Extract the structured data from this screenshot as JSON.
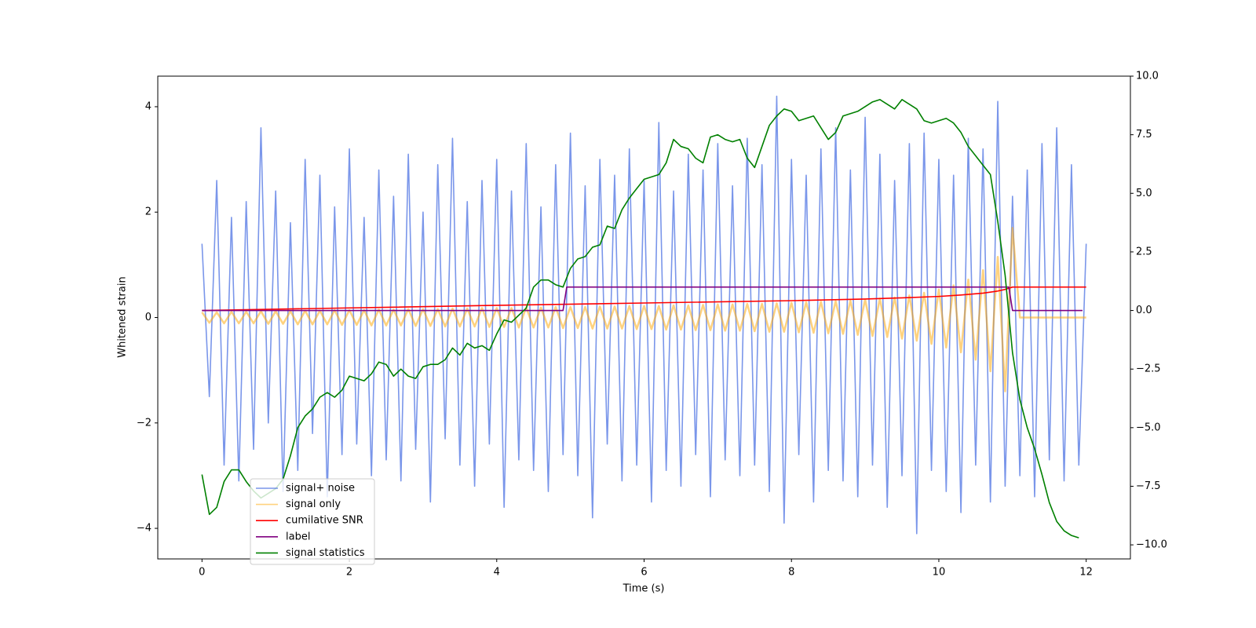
{
  "chart_data": {
    "type": "line",
    "xlabel": "Time (s)",
    "ylabel": "Whitened strain",
    "xlim": [
      -0.6,
      12.6
    ],
    "ylim": [
      -4.58,
      4.58
    ],
    "y2lim": [
      -10.6,
      10.0
    ],
    "xticks": [
      0,
      2,
      4,
      6,
      8,
      10,
      12
    ],
    "yticks": [
      {
        "value": -4,
        "label": "−4"
      },
      {
        "value": -2,
        "label": "−2"
      },
      0,
      2,
      4
    ],
    "y2ticks": [
      {
        "value": -10,
        "label": "−10.0"
      },
      {
        "value": -7.5,
        "label": "−7.5"
      },
      {
        "value": -5,
        "label": "−5.0"
      },
      {
        "value": -2.5,
        "label": "−2.5"
      },
      {
        "value": 0,
        "label": "0.0"
      },
      2.5,
      {
        "value": 5,
        "label": "5.0"
      },
      7.5,
      {
        "value": 10,
        "label": "10.0"
      }
    ],
    "legend": "lower left",
    "x": [
      0,
      0.1,
      0.2,
      0.3,
      0.4,
      0.5,
      0.6,
      0.7,
      0.8,
      0.9,
      1,
      1.1,
      1.2,
      1.3,
      1.4,
      1.5,
      1.6,
      1.7,
      1.8,
      1.9,
      2,
      2.1,
      2.2,
      2.3,
      2.4,
      2.5,
      2.6,
      2.7,
      2.8,
      2.9,
      3,
      3.1,
      3.2,
      3.3,
      3.4,
      3.5,
      3.6,
      3.7,
      3.8,
      3.9,
      4,
      4.1,
      4.2,
      4.3,
      4.4,
      4.5,
      4.6,
      4.7,
      4.8,
      4.9,
      5,
      5.1,
      5.2,
      5.3,
      5.4,
      5.5,
      5.6,
      5.7,
      5.8,
      5.9,
      6,
      6.1,
      6.2,
      6.3,
      6.4,
      6.5,
      6.6,
      6.7,
      6.8,
      6.9,
      7,
      7.1,
      7.2,
      7.3,
      7.4,
      7.5,
      7.6,
      7.7,
      7.8,
      7.9,
      8,
      8.1,
      8.2,
      8.3,
      8.4,
      8.5,
      8.6,
      8.7,
      8.8,
      8.9,
      9,
      9.1,
      9.2,
      9.3,
      9.4,
      9.5,
      9.6,
      9.7,
      9.8,
      9.9,
      10,
      10.1,
      10.2,
      10.3,
      10.4,
      10.5,
      10.6,
      10.7,
      10.8,
      10.9,
      11,
      11.1,
      11.2,
      11.3,
      11.4,
      11.5,
      11.6,
      11.7,
      11.8,
      11.9,
      12
    ],
    "series": [
      {
        "name": "signal+ noise",
        "color": "#4169e1",
        "alpha": 0.7,
        "values": [
          1.4,
          -1.5,
          2.6,
          -2.8,
          1.9,
          -3.1,
          2.2,
          -2.5,
          3.6,
          -2.0,
          2.4,
          -3.3,
          1.8,
          -2.9,
          3.0,
          -2.2,
          2.7,
          -3.4,
          2.1,
          -2.6,
          3.2,
          -2.4,
          1.9,
          -3.0,
          2.8,
          -2.7,
          2.3,
          -3.1,
          3.1,
          -2.5,
          2.0,
          -3.5,
          2.9,
          -2.3,
          3.4,
          -2.8,
          2.2,
          -3.2,
          2.6,
          -2.4,
          3.0,
          -3.6,
          2.4,
          -2.7,
          3.3,
          -2.9,
          2.1,
          -3.3,
          2.9,
          -2.6,
          3.5,
          -3.0,
          2.5,
          -3.8,
          3.0,
          -2.4,
          2.7,
          -3.1,
          3.2,
          -2.8,
          2.6,
          -3.5,
          3.7,
          -2.9,
          2.4,
          -3.2,
          3.1,
          -2.6,
          2.8,
          -3.4,
          3.3,
          -2.7,
          2.5,
          -3.0,
          3.4,
          -2.8,
          2.9,
          -3.3,
          4.2,
          -3.9,
          3.0,
          -2.6,
          2.7,
          -3.5,
          3.2,
          -2.9,
          3.6,
          -3.1,
          2.8,
          -3.4,
          3.8,
          -2.8,
          3.1,
          -3.6,
          2.6,
          -3.0,
          3.3,
          -4.1,
          3.5,
          -2.9,
          3.0,
          -3.3,
          2.7,
          -3.7,
          3.4,
          -2.8,
          3.2,
          -3.5,
          4.1,
          -3.2,
          2.3,
          -3.0,
          2.8,
          -3.4,
          3.3,
          -2.7,
          3.6,
          -3.1,
          2.9,
          -2.8,
          1.4
        ]
      },
      {
        "name": "signal only",
        "color": "#ffa500",
        "alpha": 0.5,
        "values": [
          0.1,
          -0.1,
          0.1,
          -0.11,
          0.11,
          -0.11,
          0.11,
          -0.11,
          0.12,
          -0.12,
          0.12,
          -0.12,
          0.12,
          -0.13,
          0.13,
          -0.13,
          0.13,
          -0.13,
          0.14,
          -0.14,
          0.14,
          -0.14,
          0.14,
          -0.15,
          0.15,
          -0.15,
          0.15,
          -0.15,
          0.16,
          -0.16,
          0.16,
          -0.16,
          0.16,
          -0.17,
          0.17,
          -0.17,
          0.17,
          -0.17,
          0.18,
          -0.18,
          0.18,
          -0.18,
          0.18,
          -0.19,
          0.19,
          -0.19,
          0.19,
          -0.19,
          0.2,
          -0.2,
          0.2,
          -0.2,
          0.2,
          -0.21,
          0.21,
          -0.21,
          0.21,
          -0.21,
          0.22,
          -0.22,
          0.22,
          -0.22,
          0.22,
          -0.23,
          0.23,
          -0.23,
          0.23,
          -0.24,
          0.24,
          -0.24,
          0.25,
          -0.25,
          0.25,
          -0.25,
          0.26,
          -0.26,
          0.26,
          -0.27,
          0.27,
          -0.27,
          0.28,
          -0.28,
          0.29,
          -0.29,
          0.3,
          -0.3,
          0.31,
          -0.31,
          0.32,
          -0.33,
          0.34,
          -0.35,
          0.36,
          -0.37,
          0.38,
          -0.4,
          0.42,
          -0.44,
          0.47,
          -0.5,
          0.53,
          -0.57,
          0.61,
          -0.66,
          0.72,
          -0.8,
          0.9,
          -1.02,
          1.15,
          -1.4,
          1.7,
          0,
          0,
          0,
          0,
          0,
          0,
          0,
          0,
          0,
          0
        ]
      },
      {
        "name": "cumilative SNR",
        "color": "#ff0000",
        "axis": "y2",
        "x": [
          0,
          2,
          4,
          6,
          8,
          9,
          9.5,
          10,
          10.3,
          10.6,
          10.8,
          10.9,
          11,
          12
        ],
        "values": [
          0,
          0.11,
          0.22,
          0.32,
          0.42,
          0.49,
          0.54,
          0.6,
          0.66,
          0.74,
          0.83,
          0.9,
          1,
          1
        ]
      },
      {
        "name": "label",
        "color": "#800080",
        "axis": "y2",
        "x": [
          0,
          4.9,
          4.95,
          10.95,
          11,
          11.95
        ],
        "values": [
          0,
          0,
          1,
          1,
          0,
          0
        ]
      },
      {
        "name": "signal statistics",
        "color": "#008000",
        "axis": "y2",
        "values": [
          -7.0,
          -8.7,
          -8.4,
          -7.3,
          -6.8,
          -6.8,
          -7.3,
          -7.7,
          -8.0,
          -7.8,
          -7.6,
          -7.2,
          -6.2,
          -5.0,
          -4.5,
          -4.2,
          -3.7,
          -3.5,
          -3.7,
          -3.4,
          -2.8,
          -2.9,
          -3.0,
          -2.7,
          -2.2,
          -2.3,
          -2.8,
          -2.5,
          -2.8,
          -2.9,
          -2.4,
          -2.3,
          -2.3,
          -2.1,
          -1.6,
          -1.9,
          -1.4,
          -1.6,
          -1.5,
          -1.7,
          -1.0,
          -0.4,
          -0.5,
          -0.2,
          0.1,
          1.0,
          1.3,
          1.3,
          1.1,
          1.0,
          1.8,
          2.2,
          2.3,
          2.7,
          2.8,
          3.6,
          3.5,
          4.3,
          4.8,
          5.2,
          5.6,
          5.7,
          5.8,
          6.3,
          7.3,
          7.0,
          6.9,
          6.5,
          6.3,
          7.4,
          7.5,
          7.3,
          7.2,
          7.3,
          6.5,
          6.1,
          7.0,
          7.9,
          8.3,
          8.6,
          8.5,
          8.1,
          8.2,
          8.3,
          7.8,
          7.3,
          7.6,
          8.3,
          8.4,
          8.5,
          8.7,
          8.9,
          9.0,
          8.8,
          8.6,
          9.0,
          8.8,
          8.6,
          8.1,
          8.0,
          8.1,
          8.2,
          8.0,
          7.6,
          7.0,
          6.6,
          6.2,
          5.8,
          3.8,
          1.5,
          -1.8,
          -3.8,
          -5.0,
          -5.9,
          -7.0,
          -8.2,
          -9.0,
          -9.4,
          -9.6,
          -9.7,
          null
        ]
      }
    ]
  }
}
